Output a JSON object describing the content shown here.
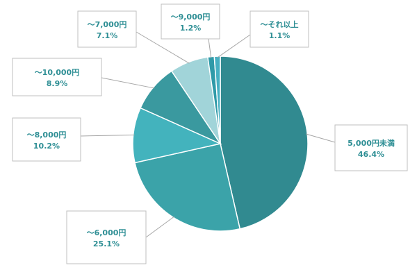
{
  "chart_data": {
    "type": "pie",
    "title": "",
    "slices": [
      {
        "label": "5,000円未満",
        "value": 46.4,
        "value_label": "46.4%",
        "color": "#318a90"
      },
      {
        "label": "〜6,000円",
        "value": 25.1,
        "value_label": "25.1%",
        "color": "#3ba3a9"
      },
      {
        "label": "〜8,000円",
        "value": 10.2,
        "value_label": "10.2%",
        "color": "#43b3bd"
      },
      {
        "label": "〜10,000円",
        "value": 8.9,
        "value_label": "8.9%",
        "color": "#3a999f"
      },
      {
        "label": "〜7,000円",
        "value": 7.1,
        "value_label": "7.1%",
        "color": "#a1d4d9"
      },
      {
        "label": "〜9,000円",
        "value": 1.2,
        "value_label": "1.2%",
        "color": "#2f9aa8"
      },
      {
        "label": "〜それ以上",
        "value": 1.1,
        "value_label": "1.1%",
        "color": "#46b0c2"
      }
    ],
    "start_angle_deg": 0,
    "direction": "clockwise",
    "legend": "none",
    "label_style": "callout boxes with leader lines"
  }
}
